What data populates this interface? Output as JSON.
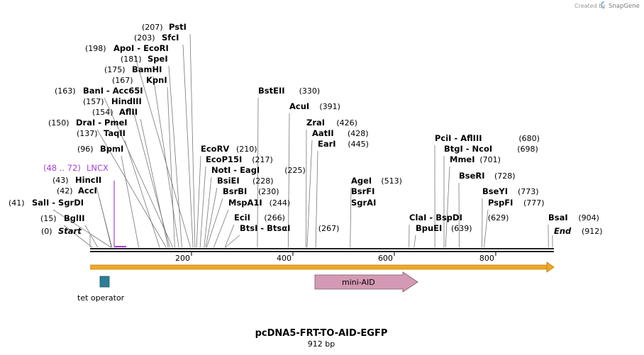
{
  "credit": {
    "created_by": "Created by",
    "brand": "SnapGene"
  },
  "plasmid": {
    "name": "pcDNA5-FRT-TO-AID-EGFP",
    "length_label": "912 bp",
    "length_bp": 912
  },
  "ruler": {
    "ticks": [
      "200",
      "400",
      "600",
      "800"
    ],
    "tick_values": [
      200,
      400,
      600,
      800
    ]
  },
  "sites": [
    {
      "pos": "(207)",
      "name": "PstI",
      "bp": 207
    },
    {
      "pos": "(203)",
      "name": "SfcI",
      "bp": 203
    },
    {
      "pos": "(198)",
      "name": "ApoI  - EcoRI",
      "bp": 198
    },
    {
      "pos": "(181)",
      "name": "SpeI",
      "bp": 181
    },
    {
      "pos": "(175)",
      "name": "BamHI",
      "bp": 175
    },
    {
      "pos": "(167)",
      "name": "KpnI",
      "bp": 167
    },
    {
      "pos": "(163)",
      "name": "BanI  - Acc65I",
      "bp": 163
    },
    {
      "pos": "(157)",
      "name": "HindIII",
      "bp": 157
    },
    {
      "pos": "(154)",
      "name": "AflII",
      "bp": 154
    },
    {
      "pos": "(150)",
      "name": "DraI  - PmeI",
      "bp": 150
    },
    {
      "pos": "(137)",
      "name": "TaqII",
      "bp": 137
    },
    {
      "pos": "(96)",
      "name": "BpmI",
      "bp": 96
    },
    {
      "pos": "(43)",
      "name": "HincII",
      "bp": 43
    },
    {
      "pos": "(42)",
      "name": "AccI",
      "bp": 42
    },
    {
      "pos": "(41)",
      "name": "SalI  - SgrDI",
      "bp": 41
    },
    {
      "pos": "(15)",
      "name": "BglII",
      "bp": 15
    },
    {
      "pos": "(210)",
      "name": "EcoRV",
      "bp": 210
    },
    {
      "pos": "(217)",
      "name": "EcoP15I",
      "bp": 217
    },
    {
      "pos": "(225)",
      "name": "NotI  - EagI",
      "bp": 225
    },
    {
      "pos": "(228)",
      "name": "BsiEI",
      "bp": 228
    },
    {
      "pos": "(230)",
      "name": "BsrBI",
      "bp": 230
    },
    {
      "pos": "(244)",
      "name": "MspA1I",
      "bp": 244
    },
    {
      "pos": "(266)",
      "name": "EciI",
      "bp": 266
    },
    {
      "pos": "(267)",
      "name": "BtsI  - BtsαI",
      "bp": 267
    },
    {
      "pos": "(330)",
      "name": "BstEII",
      "bp": 330
    },
    {
      "pos": "(391)",
      "name": "AcuI",
      "bp": 391
    },
    {
      "pos": "(426)",
      "name": "ZraI",
      "bp": 426
    },
    {
      "pos": "(428)",
      "name": "AatII",
      "bp": 428
    },
    {
      "pos": "(445)",
      "name": "EarI",
      "bp": 445
    },
    {
      "pos": "(513)",
      "name": "AgeI",
      "bp": 513
    },
    {
      "pos": "",
      "name": "BsrFI",
      "bp": 513
    },
    {
      "pos": "",
      "name": "SgrAI",
      "bp": 513
    },
    {
      "pos": "(629)",
      "name": "ClaI  - BspDI",
      "bp": 629
    },
    {
      "pos": "(639)",
      "name": "BpuEI",
      "bp": 639
    },
    {
      "pos": "(680)",
      "name": "PciI  - AflIII",
      "bp": 680
    },
    {
      "pos": "(698)",
      "name": "BtgI  - NcoI",
      "bp": 698
    },
    {
      "pos": "(701)",
      "name": "MmeI",
      "bp": 701
    },
    {
      "pos": "(728)",
      "name": "BseRI",
      "bp": 728
    },
    {
      "pos": "(773)",
      "name": "BseYI",
      "bp": 773
    },
    {
      "pos": "(777)",
      "name": "PspFI",
      "bp": 777
    },
    {
      "pos": "(904)",
      "name": "BsaI",
      "bp": 904
    }
  ],
  "ends": {
    "start_pos": "(0)",
    "start_label": "Start",
    "end_pos": "(912)",
    "end_label": "End"
  },
  "primer": {
    "label": "LNCX",
    "range": "(48 .. 72)",
    "start_bp": 48,
    "end_bp": 72
  },
  "features": [
    {
      "name": "tet operator",
      "color": "#2e7f95"
    },
    {
      "name": "mini-AID",
      "color": "#d49ab5"
    }
  ],
  "colors": {
    "backbone": "#222222",
    "orf_fill": "#f1a824",
    "primer": "#a83fd6"
  }
}
